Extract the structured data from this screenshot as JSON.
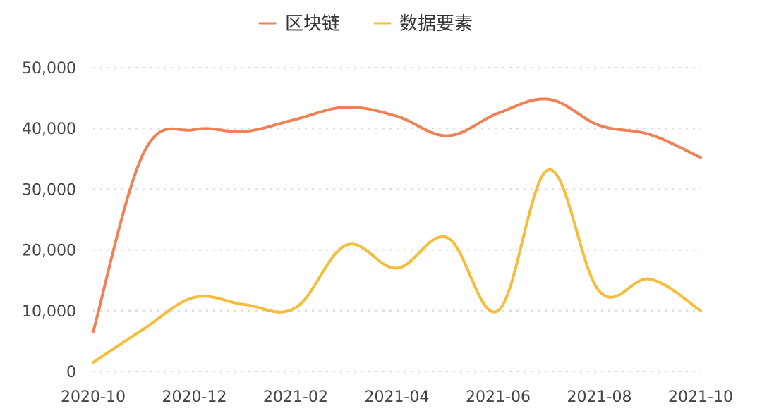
{
  "chart_data": {
    "type": "line",
    "title": "",
    "xlabel": "",
    "ylabel": "",
    "x": [
      "2020-10",
      "2020-11",
      "2020-12",
      "2021-01",
      "2021-02",
      "2021-03",
      "2021-04",
      "2021-05",
      "2021-06",
      "2021-07",
      "2021-08",
      "2021-09",
      "2021-10"
    ],
    "x_tick_labels": [
      "2020-10",
      "2020-12",
      "2021-02",
      "2021-04",
      "2021-06",
      "2021-08",
      "2021-10"
    ],
    "y_tick_labels": [
      "0",
      "10,000",
      "20,000",
      "30,000",
      "40,000",
      "50,000"
    ],
    "ylim": [
      0,
      50000
    ],
    "grid": true,
    "grid_style": "dotted horizontal",
    "legend_position": "top-center",
    "series": [
      {
        "name": "区块链",
        "color": "#ee8155",
        "values": [
          6500,
          36000,
          39800,
          39500,
          41500,
          43500,
          42000,
          38800,
          42500,
          44800,
          40500,
          39000,
          35200
        ]
      },
      {
        "name": "数据要素",
        "color": "#f5bd3c",
        "values": [
          1500,
          7000,
          12200,
          11000,
          10500,
          20800,
          17000,
          22000,
          10000,
          33200,
          13200,
          15200,
          10000
        ]
      }
    ]
  }
}
